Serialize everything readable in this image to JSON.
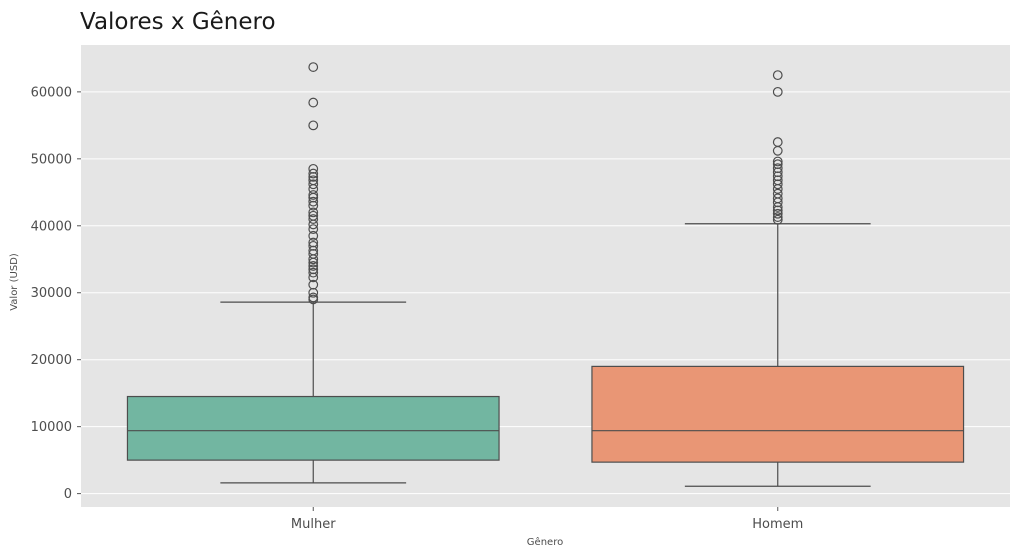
{
  "chart_data": {
    "type": "box",
    "title": "Valores x Gênero",
    "xlabel": "Gênero",
    "ylabel": "Valor (USD)",
    "ylim": [
      -2000,
      67000
    ],
    "yticks": [
      0,
      10000,
      20000,
      30000,
      40000,
      50000,
      60000
    ],
    "grid": true,
    "categories": [
      "Mulher",
      "Homem"
    ],
    "colors": {
      "background": "#e5e5e5",
      "grid": "#ffffff",
      "line": "#4d4d4d",
      "Mulher": "#72b6a1",
      "Homem": "#e99675"
    },
    "boxes": [
      {
        "category": "Mulher",
        "whisker_low": 1600,
        "q1": 5000,
        "median": 9400,
        "q3": 14500,
        "whisker_high": 28600,
        "outliers": [
          29000,
          29300,
          30000,
          31200,
          32300,
          33000,
          33500,
          34000,
          34500,
          35000,
          35800,
          36300,
          37000,
          37500,
          38500,
          39500,
          40200,
          41000,
          41500,
          42000,
          43000,
          43600,
          44200,
          44600,
          45500,
          46200,
          46800,
          47300,
          47800,
          48500,
          55000,
          58400,
          63700
        ]
      },
      {
        "category": "Homem",
        "whisker_low": 1100,
        "q1": 4700,
        "median": 9400,
        "q3": 19000,
        "whisker_high": 40300,
        "outliers": [
          40900,
          41300,
          41800,
          42300,
          42800,
          43500,
          44100,
          44800,
          45500,
          46200,
          46800,
          47400,
          48000,
          48600,
          49200,
          49600,
          51200,
          52500,
          60000,
          62500
        ]
      }
    ]
  }
}
